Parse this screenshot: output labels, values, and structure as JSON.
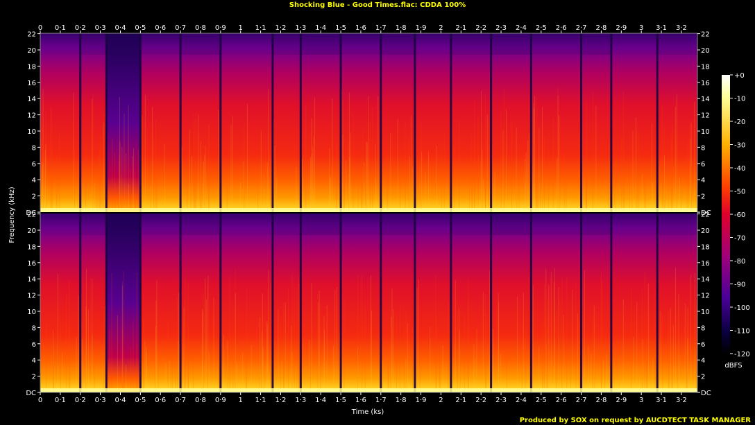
{
  "chart_data": {
    "type": "heatmap",
    "title": "Shocking Blue  - Good Times.flac: CDDA 100%",
    "xlabel": "Time (ks)",
    "ylabel": "Frequency (kHz)",
    "footer": "Produced by SOX on request by AUCDTECT TASK MANAGER",
    "colorbar_label": "dBFS",
    "x_range": [
      0,
      3.28
    ],
    "y_range": [
      0,
      22.05
    ],
    "x_ticks": [
      "0",
      "0·1",
      "0·2",
      "0·3",
      "0·4",
      "0·5",
      "0·6",
      "0·7",
      "0·8",
      "0·9",
      "1",
      "1·1",
      "1·2",
      "1·3",
      "1·4",
      "1·5",
      "1·6",
      "1·7",
      "1·8",
      "1·9",
      "2",
      "2·1",
      "2·2",
      "2·3",
      "2·4",
      "2·5",
      "2·6",
      "2·7",
      "2·8",
      "2·9",
      "3",
      "3·1",
      "3·2"
    ],
    "y_ticks": [
      "DC",
      "2",
      "4",
      "6",
      "8",
      "10",
      "12",
      "14",
      "16",
      "18",
      "20",
      "22"
    ],
    "colorbar_ticks": [
      "+0",
      "-10",
      "-20",
      "-30",
      "-40",
      "-50",
      "-60",
      "-70",
      "-80",
      "-90",
      "-100",
      "-110",
      "-120"
    ],
    "colorbar_range": [
      -120,
      0
    ],
    "channels": 2,
    "palette": [
      "#000000",
      "#1a0066",
      "#5a00a0",
      "#a0007a",
      "#e0002a",
      "#ff4000",
      "#ff9000",
      "#ffd020",
      "#ffff99",
      "#ffffff"
    ],
    "segment_boundaries_ks": [
      0.2,
      0.33,
      0.5,
      0.7,
      0.9,
      1.16,
      1.3,
      1.5,
      1.7,
      1.87,
      2.05,
      2.25,
      2.45,
      2.7,
      2.85,
      3.08
    ]
  }
}
